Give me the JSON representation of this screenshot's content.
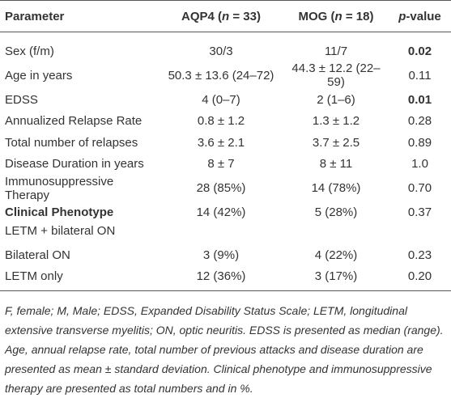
{
  "table": {
    "header": [
      "Parameter",
      [
        "AQP4 (",
        "n",
        " = 33)"
      ],
      [
        "MOG (",
        "n",
        " = 18)"
      ],
      [
        "p",
        "-value"
      ]
    ],
    "rows": [
      [
        "Sex (f/m)",
        "30/3",
        "11/7",
        "0.02"
      ],
      [
        "Age in years",
        "50.3 ± 13.6 (24–72)",
        "44.3 ± 12.2 (22–59)",
        "0.11"
      ],
      [
        "EDSS",
        "4 (0–7)",
        "2 (1–6)",
        "0.01"
      ],
      [
        "Annualized Relapse Rate",
        "0.8 ± 1.2",
        "1.3 ± 1.2",
        "0.28"
      ],
      [
        "Total number of relapses",
        "3.6 ± 2.1",
        "3.7 ± 2.5",
        "0.89"
      ],
      [
        "Disease Duration in years",
        "8 ± 7",
        "8 ± 11",
        "1.0"
      ],
      [
        "Immunosuppressive Therapy",
        "28 (85%)",
        "14 (78%)",
        "0.70"
      ],
      [
        [
          "Clinical Phenotype",
          "LETM + bilateral ON"
        ],
        "14 (42%)",
        "5 (28%)",
        "0.37"
      ],
      [
        "Bilateral ON",
        "3 (9%)",
        "4 (22%)",
        "0.23"
      ],
      [
        "LETM only",
        "12 (36%)",
        "3 (17%)",
        "0.20"
      ]
    ]
  },
  "footnote": "F, female; M, Male; EDSS, Expanded Disability Status Scale; LETM, longitudinal extensive transverse myelitis; ON, optic neuritis. EDSS is presented as median (range). Age, annual relapse rate, total number of previous attacks and disease duration are presented as mean ± standard deviation. Clinical phenotype and immunosuppressive therapy are presented as total numbers and in %."
}
